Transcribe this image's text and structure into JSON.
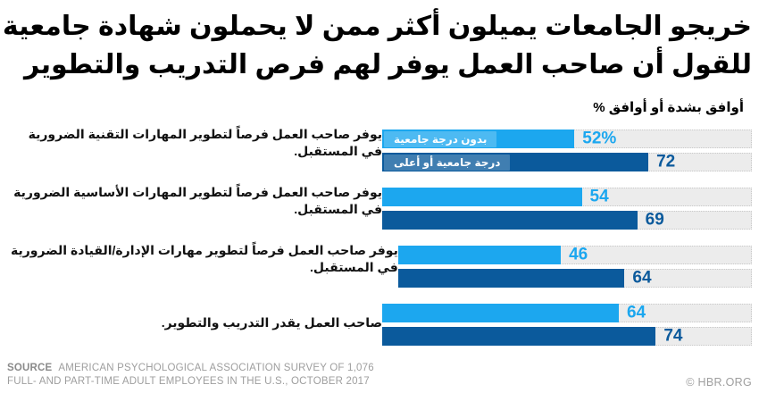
{
  "title": {
    "line1": "خريجو الجامعات يميلون أكثر ممن لا يحملون شهادة جامعية",
    "line2": "للقول أن صاحب العمل يوفر لهم فرص التدريب والتطوير"
  },
  "subtitle": "أوافق بشدة أو أوافق %",
  "chart_data": {
    "type": "bar",
    "orientation": "horizontal",
    "direction": "rtl-labels",
    "title": "خريجو الجامعات يميلون أكثر ممن لا يحملون شهادة جامعية للقول أن صاحب العمل يوفر لهم فرص التدريب والتطوير",
    "axis_note": "% أوافق بشدة أو أوافق",
    "xlim": [
      0,
      100
    ],
    "grid": false,
    "legend_position": "inside-first-bars",
    "track_color": "#ECECEC",
    "track_dot_color": "#C9C9C9",
    "categories": [
      {
        "text": "يوفر صاحب العمل فرصاً لتطوير المهارات التقنية الضرورية في المستقبل.",
        "lines": [
          "يوفر صاحب العمل فرصاً لتطوير المهارات التقنية الضرورية",
          "في المستقبل."
        ]
      },
      {
        "text": "يوفر صاحب العمل فرصاً لتطوير المهارات الأساسية الضرورية في المستقبل.",
        "lines": [
          "يوفر صاحب العمل فرصاً لتطوير المهارات الأساسية الضرورية",
          "في المستقبل."
        ]
      },
      {
        "text": "يوفر صاحب العمل فرصاً لتطوير مهارات الإدارة/القيادة الضرورية في المستقبل.",
        "lines": [
          "يوفر صاحب العمل فرصاً لتطوير مهارات الإدارة/القيادة الضرورية",
          "في المستقبل."
        ]
      },
      {
        "text": "صاحب العمل يقدر التدريب والتطوير.",
        "lines": [
          "صاحب العمل يقدر التدريب والتطوير."
        ]
      }
    ],
    "series": [
      {
        "name": "بدون درجة جامعية",
        "color": "#1CA7EF",
        "values": [
          52,
          54,
          46,
          64
        ],
        "labels": [
          "52%",
          "54",
          "46",
          "64"
        ]
      },
      {
        "name": "درجة جامعية أو أعلى",
        "color": "#0B5A9C",
        "values": [
          72,
          69,
          64,
          74
        ],
        "labels": [
          "72",
          "69",
          "64",
          "74"
        ]
      }
    ]
  },
  "footer": {
    "source_label": "SOURCE",
    "source_line1": "AMERICAN PSYCHOLOGICAL ASSOCIATION SURVEY OF 1,076",
    "source_line2": "FULL- AND PART-TIME ADULT EMPLOYEES IN THE U.S., OCTOBER 2017",
    "credit": "© HBR.ORG"
  }
}
